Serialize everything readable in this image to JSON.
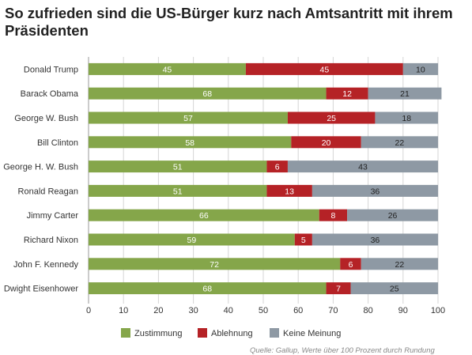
{
  "chart_data": {
    "type": "bar",
    "orientation": "horizontal",
    "stacked": true,
    "title": "So zufrieden sind die US-Bürger kurz nach Amtsantritt mit ihrem Präsidenten",
    "categories": [
      "Donald Trump",
      "Barack Obama",
      "George W. Bush",
      "Bill Clinton",
      "George H. W. Bush",
      "Ronald Reagan",
      "Jimmy Carter",
      "Richard Nixon",
      "John F. Kennedy",
      "Dwight Eisenhower"
    ],
    "series": [
      {
        "name": "Zustimmung",
        "color": "#85a64a",
        "label_color": "#ffffff",
        "values": [
          45,
          68,
          57,
          58,
          51,
          51,
          66,
          59,
          72,
          68
        ]
      },
      {
        "name": "Ablehnung",
        "color": "#b52226",
        "label_color": "#ffffff",
        "values": [
          45,
          12,
          25,
          20,
          6,
          13,
          8,
          5,
          6,
          7
        ]
      },
      {
        "name": "Keine Meinung",
        "color": "#8e99a4",
        "label_color": "#222222",
        "values": [
          10,
          21,
          18,
          22,
          43,
          36,
          26,
          36,
          22,
          25
        ]
      }
    ],
    "xlim": [
      0,
      100
    ],
    "xticks": [
      0,
      10,
      20,
      30,
      40,
      50,
      60,
      70,
      80,
      90,
      100
    ],
    "grid": true,
    "legend_position": "bottom"
  },
  "source_note": "Quelle: Gallup, Werte über 100 Prozent durch Rundung"
}
